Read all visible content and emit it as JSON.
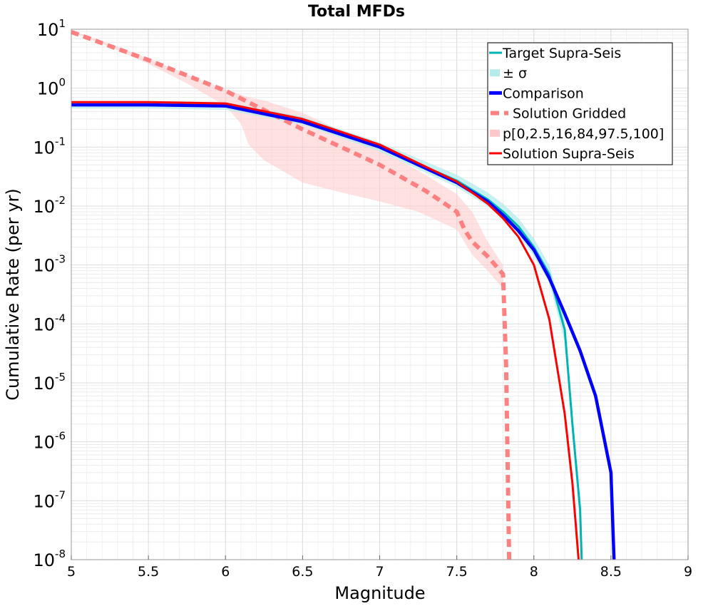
{
  "chart_data": {
    "type": "line",
    "title": "Total MFDs",
    "xlabel": "Magnitude",
    "ylabel": "Cumulative Rate (per yr)",
    "xlim": [
      5,
      9
    ],
    "ylim": [
      1e-08,
      10
    ],
    "yscale": "log",
    "x_ticks": [
      "5",
      "5.5",
      "6",
      "6.5",
      "7",
      "7.5",
      "8",
      "8.5",
      "9"
    ],
    "y_tick_base": "10",
    "y_tick_exponents": [
      "1",
      "0",
      "-1",
      "-2",
      "-3",
      "-4",
      "-5",
      "-6",
      "-7",
      "-8"
    ],
    "grid": true,
    "legend": "top-right",
    "colors": {
      "target": "#00b4b4",
      "sigma": "#b4ebeb",
      "comparison": "#0000ff",
      "gridded": "#ff8080",
      "percentile": "#ffc8c8",
      "supra": "#ff0000"
    },
    "series": [
      {
        "name": "Target Supra-Seis",
        "style": "line",
        "x": [
          5.0,
          5.5,
          6.0,
          6.5,
          7.0,
          7.5,
          7.7,
          7.8,
          7.9,
          8.0,
          8.1,
          8.2,
          8.25,
          8.3,
          8.31
        ],
        "y": [
          0.52,
          0.52,
          0.5,
          0.28,
          0.1,
          0.027,
          0.013,
          0.008,
          0.0045,
          0.002,
          0.0007,
          8e-05,
          2e-06,
          7e-08,
          1e-08
        ]
      },
      {
        "name": "± σ",
        "style": "band",
        "x": [
          5.0,
          5.5,
          6.0,
          6.5,
          7.0,
          7.5,
          7.7,
          7.8,
          7.9,
          8.0,
          8.1,
          8.2
        ],
        "lower": [
          0.45,
          0.45,
          0.43,
          0.24,
          0.085,
          0.021,
          0.01,
          0.006,
          0.0033,
          0.0014,
          0.0005,
          5e-05
        ],
        "upper": [
          0.6,
          0.6,
          0.58,
          0.33,
          0.12,
          0.034,
          0.017,
          0.011,
          0.0062,
          0.0028,
          0.001,
          0.00012
        ]
      },
      {
        "name": "Comparison",
        "style": "line",
        "x": [
          5.0,
          5.5,
          6.0,
          6.5,
          7.0,
          7.5,
          7.7,
          7.8,
          7.9,
          8.0,
          8.1,
          8.2,
          8.3,
          8.4,
          8.5,
          8.52
        ],
        "y": [
          0.52,
          0.52,
          0.5,
          0.27,
          0.1,
          0.025,
          0.012,
          0.007,
          0.0038,
          0.0018,
          0.0006,
          0.00015,
          3.5e-05,
          6e-06,
          3e-07,
          1e-08
        ]
      },
      {
        "name": "Solution Gridded",
        "style": "dashed",
        "x": [
          5.0,
          5.5,
          6.0,
          6.5,
          7.0,
          7.3,
          7.5,
          7.55,
          7.6,
          7.7,
          7.8,
          7.82,
          7.84
        ],
        "y": [
          9.0,
          3.0,
          0.9,
          0.2,
          0.05,
          0.018,
          0.008,
          0.004,
          0.0025,
          0.0014,
          0.0007,
          2e-05,
          1e-08
        ]
      },
      {
        "name": "p[0,2.5,16,84,97.5,100]",
        "style": "band",
        "x": [
          5.0,
          5.25,
          5.5,
          5.75,
          6.0,
          6.1,
          6.15,
          6.25,
          6.5,
          6.75,
          7.0,
          7.25,
          7.5,
          7.6,
          7.7,
          7.8
        ],
        "lower": [
          9.0,
          5.0,
          2.6,
          1.2,
          0.5,
          0.25,
          0.11,
          0.06,
          0.025,
          0.017,
          0.012,
          0.008,
          0.004,
          0.0015,
          0.0008,
          0.0004
        ],
        "upper": [
          9.5,
          5.6,
          3.2,
          1.7,
          0.95,
          0.78,
          0.7,
          0.62,
          0.38,
          0.19,
          0.09,
          0.04,
          0.016,
          0.008,
          0.0025,
          0.001
        ]
      },
      {
        "name": "Solution Supra-Seis",
        "style": "line",
        "x": [
          5.0,
          5.5,
          6.0,
          6.5,
          7.0,
          7.5,
          7.7,
          7.8,
          7.9,
          8.0,
          8.1,
          8.2,
          8.25,
          8.29
        ],
        "y": [
          0.58,
          0.58,
          0.55,
          0.3,
          0.11,
          0.026,
          0.011,
          0.0062,
          0.003,
          0.001,
          0.00012,
          3e-06,
          2e-07,
          1e-08
        ]
      }
    ]
  }
}
